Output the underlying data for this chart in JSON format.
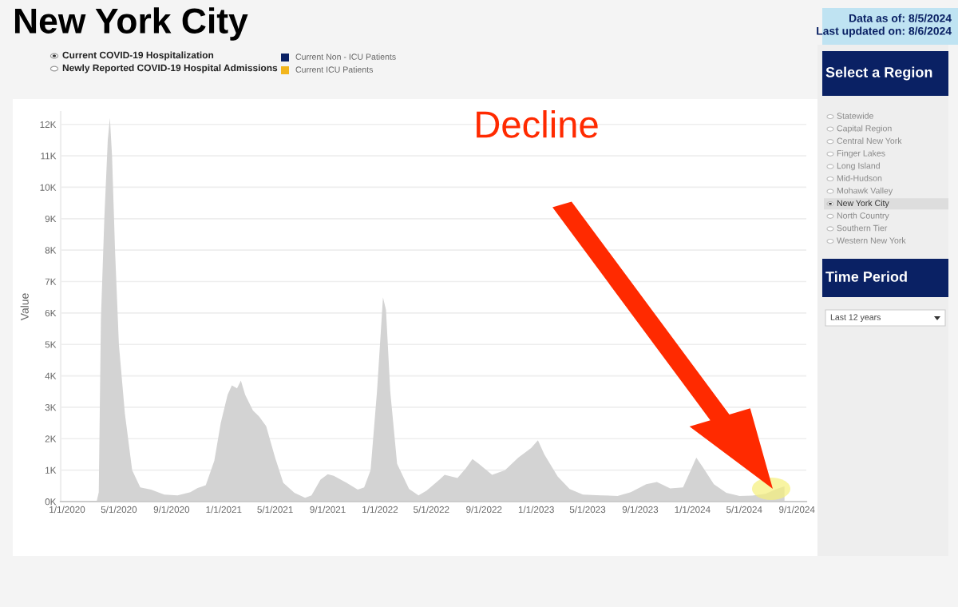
{
  "chart_data": {
    "type": "area",
    "title": "New York City",
    "ylabel": "Value",
    "x": [
      "2020-03-10",
      "2020-03-15",
      "2020-03-20",
      "2020-03-28",
      "2020-04-05",
      "2020-04-10",
      "2020-04-15",
      "2020-04-22",
      "2020-05-01",
      "2020-05-15",
      "2020-06-01",
      "2020-06-20",
      "2020-07-15",
      "2020-08-15",
      "2020-09-15",
      "2020-10-15",
      "2020-11-01",
      "2020-11-20",
      "2020-12-10",
      "2020-12-25",
      "2021-01-10",
      "2021-01-20",
      "2021-02-01",
      "2021-02-10",
      "2021-02-20",
      "2021-03-10",
      "2021-03-25",
      "2021-04-10",
      "2021-05-01",
      "2021-05-20",
      "2021-06-15",
      "2021-07-10",
      "2021-07-25",
      "2021-08-15",
      "2021-09-01",
      "2021-09-15",
      "2021-10-15",
      "2021-11-10",
      "2021-11-25",
      "2021-12-10",
      "2021-12-25",
      "2022-01-08",
      "2022-01-15",
      "2022-01-25",
      "2022-02-10",
      "2022-03-10",
      "2022-04-01",
      "2022-04-20",
      "2022-05-20",
      "2022-06-01",
      "2022-07-01",
      "2022-07-20",
      "2022-08-05",
      "2022-08-20",
      "2022-09-20",
      "2022-10-20",
      "2022-11-20",
      "2022-12-20",
      "2023-01-05",
      "2023-01-20",
      "2023-02-20",
      "2023-03-20",
      "2023-04-20",
      "2023-06-01",
      "2023-07-10",
      "2023-08-10",
      "2023-09-15",
      "2023-10-10",
      "2023-11-10",
      "2023-12-10",
      "2023-12-28",
      "2024-01-10",
      "2024-01-25",
      "2024-02-20",
      "2024-03-20",
      "2024-04-20",
      "2024-05-20",
      "2024-06-20",
      "2024-07-15",
      "2024-08-03"
    ],
    "series": [
      {
        "color": "#d3d3d3",
        "values": [
          0,
          300,
          5800,
          9000,
          11500,
          12200,
          11000,
          8000,
          5000,
          2800,
          1000,
          450,
          380,
          220,
          200,
          300,
          430,
          520,
          1300,
          2500,
          3400,
          3700,
          3600,
          3850,
          3400,
          2900,
          2700,
          2400,
          1400,
          600,
          280,
          120,
          200,
          700,
          870,
          820,
          600,
          380,
          450,
          1000,
          3500,
          6500,
          6100,
          3500,
          1200,
          400,
          200,
          350,
          700,
          850,
          750,
          1050,
          1350,
          1200,
          850,
          1000,
          1400,
          1700,
          1950,
          1500,
          800,
          400,
          220,
          200,
          180,
          300,
          550,
          620,
          420,
          450,
          1000,
          1400,
          1100,
          550,
          280,
          180,
          190,
          250,
          400,
          480
        ]
      }
    ],
    "xlim": [
      "2019-12-17",
      "2024-09-23"
    ],
    "xticks": [
      {
        "value": "2020-01-01",
        "label": "1/1/2020"
      },
      {
        "value": "2020-05-01",
        "label": "5/1/2020"
      },
      {
        "value": "2020-09-01",
        "label": "9/1/2020"
      },
      {
        "value": "2021-01-01",
        "label": "1/1/2021"
      },
      {
        "value": "2021-05-01",
        "label": "5/1/2021"
      },
      {
        "value": "2021-09-01",
        "label": "9/1/2021"
      },
      {
        "value": "2022-01-01",
        "label": "1/1/2022"
      },
      {
        "value": "2022-05-01",
        "label": "5/1/2022"
      },
      {
        "value": "2022-09-01",
        "label": "9/1/2022"
      },
      {
        "value": "2023-01-01",
        "label": "1/1/2023"
      },
      {
        "value": "2023-05-01",
        "label": "5/1/2023"
      },
      {
        "value": "2023-09-01",
        "label": "9/1/2023"
      },
      {
        "value": "2024-01-01",
        "label": "1/1/2024"
      },
      {
        "value": "2024-05-01",
        "label": "5/1/2024"
      },
      {
        "value": "2024-09-01",
        "label": "9/1/2024"
      }
    ],
    "ylim": [
      0,
      12400
    ],
    "yticks": [
      {
        "value": 0,
        "label": "0K"
      },
      {
        "value": 1000,
        "label": "1K"
      },
      {
        "value": 2000,
        "label": "2K"
      },
      {
        "value": 3000,
        "label": "3K"
      },
      {
        "value": 4000,
        "label": "4K"
      },
      {
        "value": 5000,
        "label": "5K"
      },
      {
        "value": 6000,
        "label": "6K"
      },
      {
        "value": 7000,
        "label": "7K"
      },
      {
        "value": 8000,
        "label": "8K"
      },
      {
        "value": 9000,
        "label": "9K"
      },
      {
        "value": 10000,
        "label": "10K"
      },
      {
        "value": 11000,
        "label": "11K"
      },
      {
        "value": 12000,
        "label": "12K"
      }
    ],
    "grid": "y",
    "marker": "none",
    "annotations": [
      "Data as of: 8/5/2024",
      "Last updated on: 8/6/2024",
      "Current COVID-19 Hospitalization",
      "Newly Reported COVID-19 Hospital Admissions",
      "Current Non - ICU Patients",
      "Current ICU Patients",
      "Select a Region",
      "Statewide",
      "Capital Region",
      "Central New York",
      "Finger Lakes",
      "Long Island",
      "Mid-Hudson",
      "Mohawk Valley",
      "New York City",
      "North Country",
      "Southern Tier",
      "Western New York",
      "Time Period",
      "Last 12 years",
      "Decline"
    ]
  }
}
